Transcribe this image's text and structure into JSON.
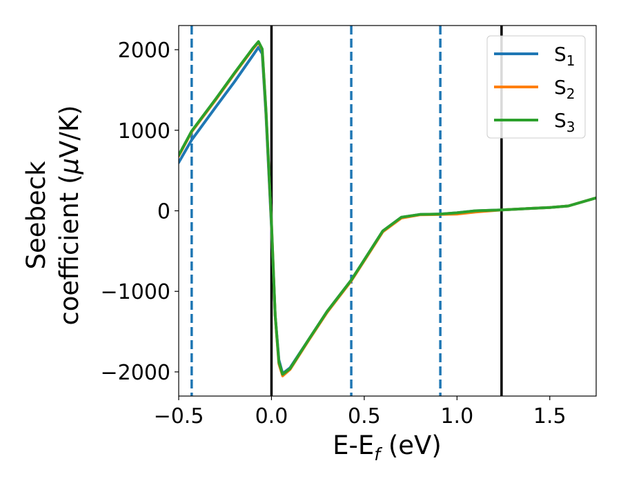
{
  "chart_data": {
    "type": "line",
    "xlabel": {
      "main": "E-E",
      "sub": "f",
      "rest": " (eV)"
    },
    "ylabel": {
      "line1": "Seebeck",
      "line2_pre": "coefficient  (",
      "mu": "μ",
      "line2_post": "V/K)"
    },
    "xlim": [
      -0.5,
      1.75
    ],
    "ylim": [
      -2300,
      2300
    ],
    "x_ticks": [
      -0.5,
      0.0,
      0.5,
      1.0,
      1.5
    ],
    "x_tick_labels": [
      "−0.5",
      "0.0",
      "0.5",
      "1.0",
      "1.5"
    ],
    "y_ticks": [
      2000,
      1000,
      0,
      -1000,
      -2000
    ],
    "y_tick_labels": [
      "2000",
      "1000",
      "0",
      "−1000",
      "−2000"
    ],
    "legend_position": "top-right",
    "vlines_dashed": [
      -0.43,
      0.43,
      0.91
    ],
    "vlines_solid": [
      0.0,
      1.24
    ],
    "vline_dashed_color": "#1f77b4",
    "vline_solid_color": "#000000",
    "series": [
      {
        "name": "S",
        "sub": "1",
        "color": "#1f77b4",
        "x": [
          -0.5,
          -0.43,
          -0.3,
          -0.2,
          -0.1,
          -0.07,
          -0.05,
          -0.03,
          0.0,
          0.02,
          0.04,
          0.06,
          0.1,
          0.2,
          0.3,
          0.43,
          0.5,
          0.6,
          0.7,
          0.8,
          0.91,
          1.0,
          1.1,
          1.24,
          1.4,
          1.5,
          1.6,
          1.75
        ],
        "y": [
          600,
          880,
          1290,
          1600,
          1930,
          2030,
          1950,
          1200,
          -200,
          -1300,
          -1850,
          -2020,
          -1950,
          -1600,
          -1250,
          -860,
          -610,
          -250,
          -80,
          -45,
          -40,
          -25,
          0,
          10,
          30,
          40,
          60,
          160
        ]
      },
      {
        "name": "S",
        "sub": "2",
        "color": "#ff7f0e",
        "x": [
          -0.5,
          -0.43,
          -0.3,
          -0.2,
          -0.1,
          -0.07,
          -0.05,
          -0.03,
          0.0,
          0.02,
          0.04,
          0.06,
          0.1,
          0.2,
          0.3,
          0.43,
          0.5,
          0.6,
          0.7,
          0.8,
          0.91,
          1.0,
          1.1,
          1.24,
          1.4,
          1.5,
          1.6,
          1.75
        ],
        "y": [
          680,
          980,
          1380,
          1700,
          2010,
          2090,
          2000,
          1250,
          -150,
          -1300,
          -1900,
          -2050,
          -1970,
          -1610,
          -1260,
          -870,
          -620,
          -260,
          -90,
          -50,
          -45,
          -40,
          -15,
          10,
          30,
          40,
          60,
          160
        ]
      },
      {
        "name": "S",
        "sub": "3",
        "color": "#2ca02c",
        "x": [
          -0.5,
          -0.43,
          -0.3,
          -0.2,
          -0.1,
          -0.07,
          -0.05,
          -0.03,
          0.0,
          0.02,
          0.04,
          0.06,
          0.1,
          0.2,
          0.3,
          0.43,
          0.5,
          0.6,
          0.7,
          0.8,
          0.91,
          1.0,
          1.1,
          1.24,
          1.4,
          1.5,
          1.6,
          1.75
        ],
        "y": [
          690,
          990,
          1390,
          1710,
          2020,
          2100,
          2010,
          1260,
          -140,
          -1290,
          -1880,
          -2030,
          -1960,
          -1600,
          -1250,
          -860,
          -610,
          -250,
          -80,
          -45,
          -40,
          -25,
          0,
          10,
          30,
          40,
          60,
          160
        ]
      }
    ]
  }
}
